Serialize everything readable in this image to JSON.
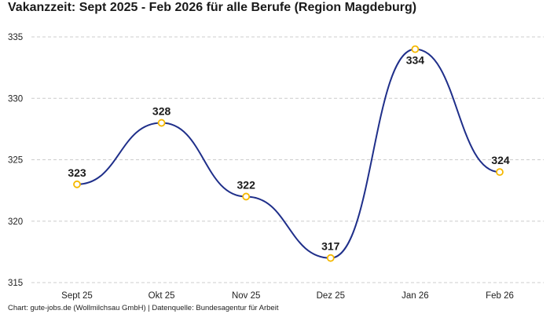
{
  "title": "Vakanzzeit: Sept 2025 - Feb 2026 für alle Berufe (Region Magdeburg)",
  "footer": "Chart: gute-jobs.de (Wollmilchsau GmbH) | Datenquelle: Bundesagentur für Arbeit",
  "colors": {
    "line": "#1f2f8a",
    "marker_stroke": "#f5b800",
    "marker_fill": "#ffffff",
    "grid": "#cccccc"
  },
  "chart_data": {
    "type": "line",
    "title": "Vakanzzeit: Sept 2025 - Feb 2026 für alle Berufe (Region Magdeburg)",
    "xlabel": "",
    "ylabel": "",
    "categories": [
      "Sept 25",
      "Okt 25",
      "Nov 25",
      "Dez 25",
      "Jan 26",
      "Feb 26"
    ],
    "values": [
      323,
      328,
      322,
      317,
      334,
      324
    ],
    "value_labels": [
      "323",
      "328",
      "322",
      "317",
      "334",
      "324"
    ],
    "ylim": [
      315,
      335
    ],
    "yticks": [
      315,
      320,
      325,
      330,
      335
    ],
    "ytick_labels": [
      "315",
      "320",
      "325",
      "330",
      "335"
    ],
    "grid": "horizontal dashed",
    "curve": "smooth"
  }
}
